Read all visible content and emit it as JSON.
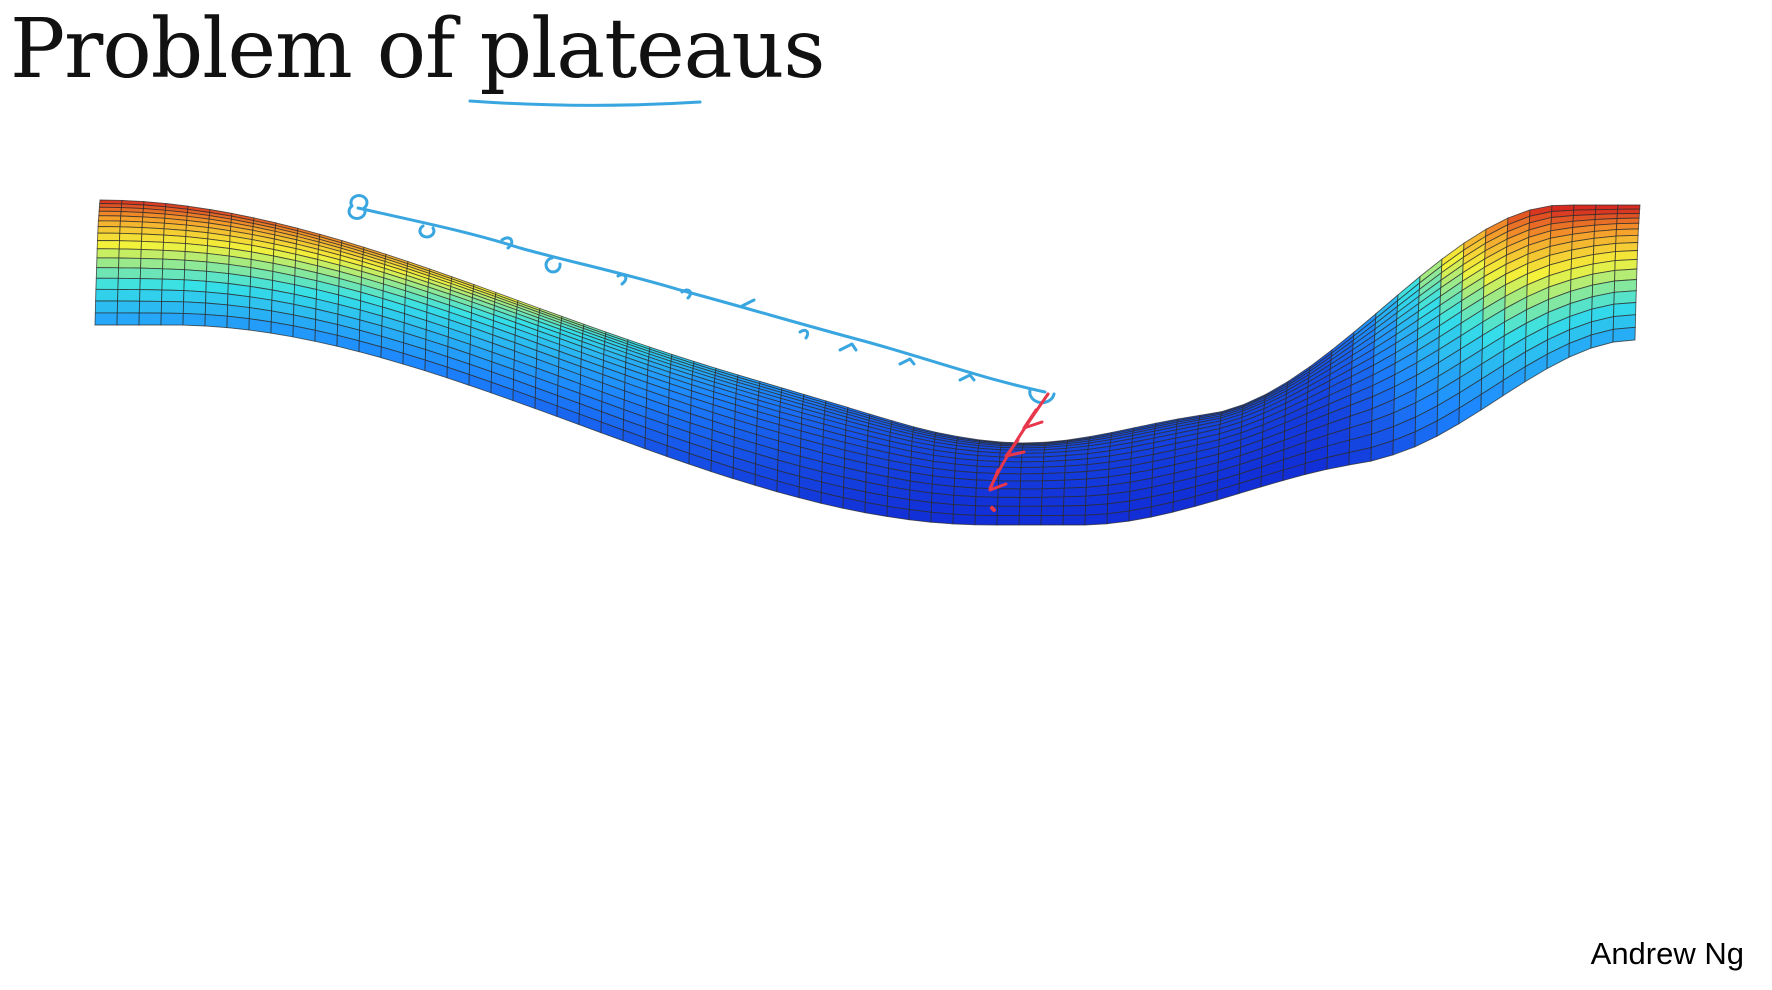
{
  "slide": {
    "title": "Problem of plateaus",
    "author": "Andrew Ng"
  },
  "surface": {
    "colormap": [
      "#1020d0",
      "#1d86ff",
      "#35e0e8",
      "#f3f23a",
      "#f59a2a",
      "#d62a20"
    ],
    "mesh_color": "#2b2b2b"
  },
  "annotations": {
    "plateau_path_color": "#3aa6e0",
    "descent_arrow_color": "#e8364a",
    "underline_color": "#3aa6e0"
  }
}
